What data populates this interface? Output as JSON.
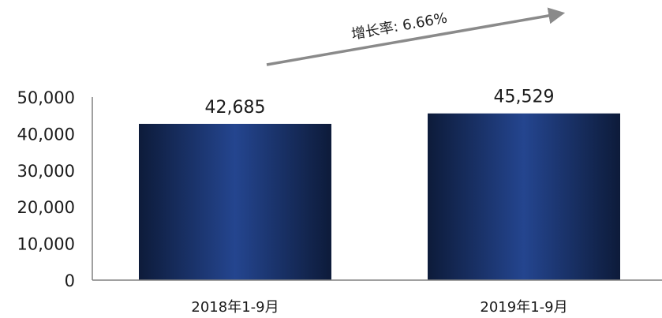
{
  "chart_data": {
    "type": "bar",
    "categories": [
      "2018年1-9月",
      "2019年1-9月"
    ],
    "values": [
      42685,
      45529
    ],
    "value_labels": [
      "42,685",
      "45,529"
    ],
    "yticks": [
      "0",
      "10,000",
      "20,000",
      "30,000",
      "40,000",
      "50,000"
    ],
    "ytick_values": [
      0,
      10000,
      20000,
      30000,
      40000,
      50000
    ],
    "ylim": [
      0,
      50000
    ],
    "grid": false,
    "legend": "none",
    "annotation": "增长率: 6.66%",
    "colors": {
      "bar_edge": "#0d1b3a",
      "bar_center": "#24458f",
      "axis": "#808080",
      "arrow": "#8a8a8a"
    }
  }
}
